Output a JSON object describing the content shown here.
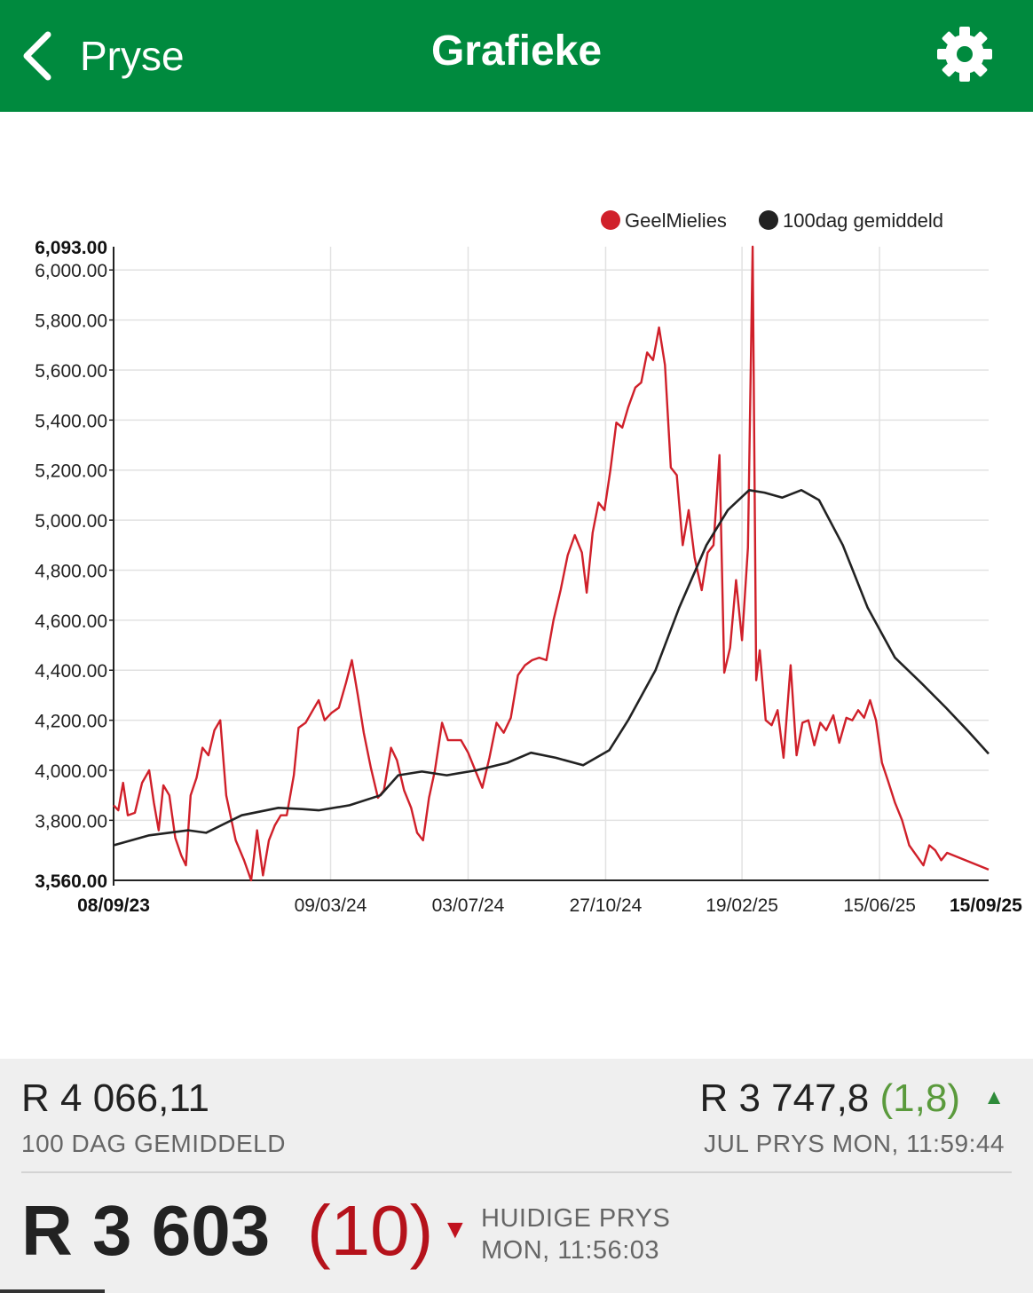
{
  "nav": {
    "back_label": "Pryse",
    "title": "Grafieke",
    "settings_icon": "gear-icon"
  },
  "colors": {
    "nav_bg": "#008a3e",
    "price_line": "#d0202a",
    "average_line": "#222222",
    "change_up": "#5a9a3c",
    "change_down": "#b5121b"
  },
  "chart_data": {
    "type": "line",
    "legend_position": "top-right",
    "grid": true,
    "ylim": [
      3560,
      6093
    ],
    "y_ticks": [
      "6,000.00",
      "5,800.00",
      "5,600.00",
      "5,400.00",
      "5,200.00",
      "5,000.00",
      "4,800.00",
      "4,600.00",
      "4,400.00",
      "4,200.00",
      "4,000.00",
      "3,800.00"
    ],
    "y_tick_values": [
      6000,
      5800,
      5600,
      5400,
      5200,
      5000,
      4800,
      4600,
      4400,
      4200,
      4000,
      3800
    ],
    "y_max_label": "6,093.00",
    "y_min_label": "3,560.00",
    "x_ticks": [
      "09/03/24",
      "03/07/24",
      "27/10/24",
      "19/02/25",
      "15/06/25"
    ],
    "x_start_label": "08/09/23",
    "x_end_label": "15/09/25",
    "x_start": "2023-09-08",
    "x_end": "2025-09-15",
    "series": [
      {
        "name": "GeelMielies",
        "color": "#d0202a",
        "points": [
          [
            "2023-09-08",
            3860
          ],
          [
            "2023-09-12",
            3840
          ],
          [
            "2023-09-16",
            3950
          ],
          [
            "2023-09-20",
            3820
          ],
          [
            "2023-09-26",
            3830
          ],
          [
            "2023-10-02",
            3950
          ],
          [
            "2023-10-08",
            4000
          ],
          [
            "2023-10-12",
            3870
          ],
          [
            "2023-10-16",
            3760
          ],
          [
            "2023-10-20",
            3940
          ],
          [
            "2023-10-25",
            3900
          ],
          [
            "2023-10-30",
            3730
          ],
          [
            "2023-11-04",
            3660
          ],
          [
            "2023-11-08",
            3620
          ],
          [
            "2023-11-12",
            3900
          ],
          [
            "2023-11-17",
            3970
          ],
          [
            "2023-11-22",
            4090
          ],
          [
            "2023-11-27",
            4060
          ],
          [
            "2023-12-02",
            4160
          ],
          [
            "2023-12-07",
            4200
          ],
          [
            "2023-12-12",
            3900
          ],
          [
            "2023-12-20",
            3720
          ],
          [
            "2023-12-27",
            3640
          ],
          [
            "2024-01-02",
            3560
          ],
          [
            "2024-01-07",
            3760
          ],
          [
            "2024-01-12",
            3580
          ],
          [
            "2024-01-17",
            3720
          ],
          [
            "2024-01-22",
            3780
          ],
          [
            "2024-01-27",
            3820
          ],
          [
            "2024-02-01",
            3820
          ],
          [
            "2024-02-07",
            3980
          ],
          [
            "2024-02-11",
            4170
          ],
          [
            "2024-02-17",
            4190
          ],
          [
            "2024-02-23",
            4240
          ],
          [
            "2024-02-28",
            4280
          ],
          [
            "2024-03-04",
            4200
          ],
          [
            "2024-03-10",
            4230
          ],
          [
            "2024-03-16",
            4250
          ],
          [
            "2024-03-22",
            4350
          ],
          [
            "2024-03-27",
            4440
          ],
          [
            "2024-04-01",
            4300
          ],
          [
            "2024-04-06",
            4150
          ],
          [
            "2024-04-12",
            4010
          ],
          [
            "2024-04-18",
            3890
          ],
          [
            "2024-04-23",
            3920
          ],
          [
            "2024-04-29",
            4090
          ],
          [
            "2024-05-04",
            4040
          ],
          [
            "2024-05-10",
            3920
          ],
          [
            "2024-05-16",
            3850
          ],
          [
            "2024-05-21",
            3750
          ],
          [
            "2024-05-26",
            3720
          ],
          [
            "2024-05-31",
            3890
          ],
          [
            "2024-06-05",
            4000
          ],
          [
            "2024-06-11",
            4190
          ],
          [
            "2024-06-16",
            4120
          ],
          [
            "2024-06-22",
            4120
          ],
          [
            "2024-06-27",
            4120
          ],
          [
            "2024-07-03",
            4070
          ],
          [
            "2024-07-09",
            4000
          ],
          [
            "2024-07-15",
            3930
          ],
          [
            "2024-07-21",
            4050
          ],
          [
            "2024-07-27",
            4190
          ],
          [
            "2024-08-02",
            4150
          ],
          [
            "2024-08-08",
            4210
          ],
          [
            "2024-08-14",
            4380
          ],
          [
            "2024-08-20",
            4420
          ],
          [
            "2024-08-26",
            4440
          ],
          [
            "2024-09-01",
            4450
          ],
          [
            "2024-09-07",
            4440
          ],
          [
            "2024-09-13",
            4600
          ],
          [
            "2024-09-19",
            4720
          ],
          [
            "2024-09-25",
            4860
          ],
          [
            "2024-10-01",
            4940
          ],
          [
            "2024-10-07",
            4870
          ],
          [
            "2024-10-11",
            4710
          ],
          [
            "2024-10-16",
            4950
          ],
          [
            "2024-10-21",
            5070
          ],
          [
            "2024-10-26",
            5040
          ],
          [
            "2024-10-31",
            5200
          ],
          [
            "2024-11-05",
            5390
          ],
          [
            "2024-11-10",
            5370
          ],
          [
            "2024-11-15",
            5450
          ],
          [
            "2024-11-21",
            5530
          ],
          [
            "2024-11-26",
            5550
          ],
          [
            "2024-12-01",
            5670
          ],
          [
            "2024-12-06",
            5640
          ],
          [
            "2024-12-11",
            5770
          ],
          [
            "2024-12-16",
            5620
          ],
          [
            "2024-12-21",
            5210
          ],
          [
            "2024-12-26",
            5180
          ],
          [
            "2024-12-31",
            4900
          ],
          [
            "2025-01-05",
            5040
          ],
          [
            "2025-01-10",
            4850
          ],
          [
            "2025-01-16",
            4720
          ],
          [
            "2025-01-21",
            4870
          ],
          [
            "2025-01-26",
            4900
          ],
          [
            "2025-01-31",
            5260
          ],
          [
            "2025-02-04",
            4390
          ],
          [
            "2025-02-09",
            4490
          ],
          [
            "2025-02-14",
            4760
          ],
          [
            "2025-02-19",
            4520
          ],
          [
            "2025-02-24",
            4890
          ],
          [
            "2025-02-28",
            6093
          ],
          [
            "2025-03-03",
            4360
          ],
          [
            "2025-03-06",
            4480
          ],
          [
            "2025-03-11",
            4200
          ],
          [
            "2025-03-16",
            4180
          ],
          [
            "2025-03-21",
            4240
          ],
          [
            "2025-03-26",
            4050
          ],
          [
            "2025-04-01",
            4420
          ],
          [
            "2025-04-06",
            4060
          ],
          [
            "2025-04-11",
            4190
          ],
          [
            "2025-04-16",
            4200
          ],
          [
            "2025-04-21",
            4100
          ],
          [
            "2025-04-26",
            4190
          ],
          [
            "2025-05-01",
            4160
          ],
          [
            "2025-05-07",
            4220
          ],
          [
            "2025-05-12",
            4110
          ],
          [
            "2025-05-18",
            4210
          ],
          [
            "2025-05-23",
            4200
          ],
          [
            "2025-05-28",
            4240
          ],
          [
            "2025-06-02",
            4210
          ],
          [
            "2025-06-07",
            4280
          ],
          [
            "2025-06-12",
            4200
          ],
          [
            "2025-06-17",
            4030
          ],
          [
            "2025-06-22",
            3960
          ],
          [
            "2025-06-28",
            3870
          ],
          [
            "2025-07-04",
            3800
          ],
          [
            "2025-07-10",
            3700
          ],
          [
            "2025-07-16",
            3660
          ],
          [
            "2025-07-22",
            3620
          ],
          [
            "2025-07-27",
            3700
          ],
          [
            "2025-08-01",
            3680
          ],
          [
            "2025-08-06",
            3640
          ],
          [
            "2025-08-11",
            3670
          ],
          [
            "2025-09-15",
            3603
          ]
        ]
      },
      {
        "name": "100dag gemiddeld",
        "color": "#222222",
        "points": [
          [
            "2023-09-08",
            3700
          ],
          [
            "2023-10-08",
            3740
          ],
          [
            "2023-11-10",
            3760
          ],
          [
            "2023-11-25",
            3750
          ],
          [
            "2023-12-25",
            3820
          ],
          [
            "2024-01-25",
            3850
          ],
          [
            "2024-02-14",
            3845
          ],
          [
            "2024-02-28",
            3840
          ],
          [
            "2024-03-25",
            3860
          ],
          [
            "2024-04-20",
            3900
          ],
          [
            "2024-05-05",
            3980
          ],
          [
            "2024-05-25",
            3995
          ],
          [
            "2024-06-15",
            3980
          ],
          [
            "2024-07-10",
            4000
          ],
          [
            "2024-08-05",
            4030
          ],
          [
            "2024-08-25",
            4070
          ],
          [
            "2024-09-15",
            4050
          ],
          [
            "2024-10-08",
            4020
          ],
          [
            "2024-10-30",
            4080
          ],
          [
            "2024-11-15",
            4200
          ],
          [
            "2024-12-08",
            4400
          ],
          [
            "2024-12-28",
            4650
          ],
          [
            "2025-01-20",
            4900
          ],
          [
            "2025-02-07",
            5040
          ],
          [
            "2025-02-25",
            5120
          ],
          [
            "2025-03-10",
            5110
          ],
          [
            "2025-03-25",
            5090
          ],
          [
            "2025-04-10",
            5120
          ],
          [
            "2025-04-25",
            5080
          ],
          [
            "2025-05-15",
            4900
          ],
          [
            "2025-06-05",
            4650
          ],
          [
            "2025-06-28",
            4450
          ],
          [
            "2025-07-20",
            4350
          ],
          [
            "2025-08-10",
            4250
          ],
          [
            "2025-08-30",
            4150
          ],
          [
            "2025-09-15",
            4066
          ]
        ]
      }
    ]
  },
  "footer": {
    "moving_average": {
      "value": "R 4 066,11",
      "label": "100 DAG GEMIDDELD"
    },
    "july_price": {
      "value": "R 3 747,8",
      "change": "(1,8)",
      "direction_icon": "triangle-up-icon",
      "arrow": "▲",
      "label": "JUL PRYS MON, 11:59:44"
    },
    "current_price": {
      "value": "R 3 603",
      "change": "(10)",
      "direction_icon": "triangle-down-icon",
      "arrow": "▼",
      "label_line1": "HUIDIGE PRYS",
      "label_line2": "MON, 11:56:03"
    }
  }
}
